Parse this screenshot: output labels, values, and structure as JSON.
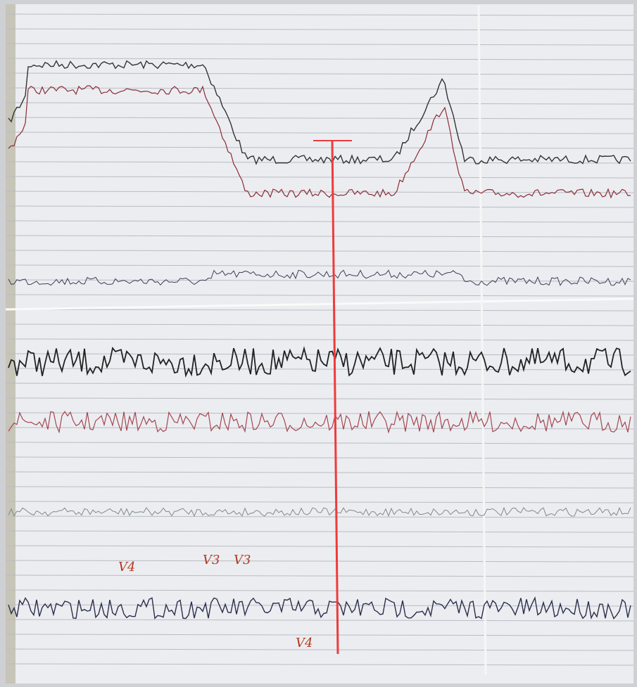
{
  "annotations": [
    "V4",
    "V3",
    "V3",
    "V4"
  ]
}
